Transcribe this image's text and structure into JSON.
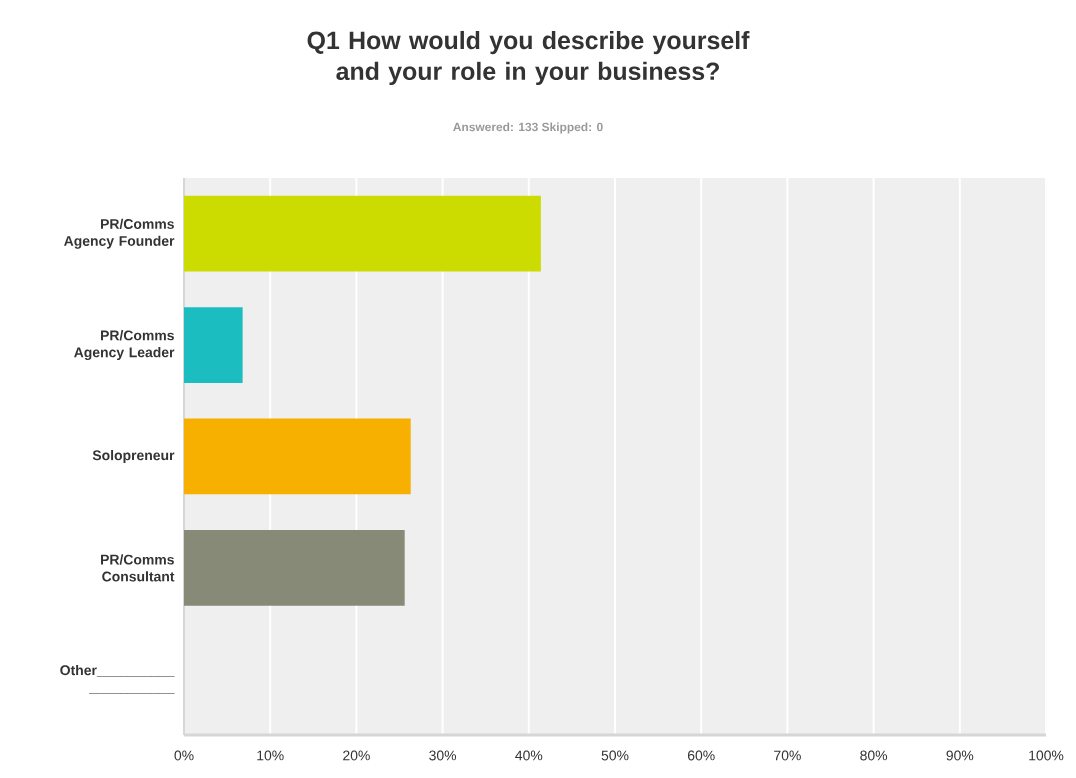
{
  "chart_data": {
    "type": "bar",
    "orientation": "horizontal",
    "title": "Q1 How would you describe yourself and your role in your business?",
    "subtitle": "Answered: 133    Skipped: 0",
    "categories": [
      "PR/Comms Agency Founder",
      "PR/Comms Agency Leader",
      "Solopreneur",
      "PR/Comms Consultant",
      "Other__________ ___________"
    ],
    "values": [
      41.4,
      6.8,
      26.3,
      25.6,
      0
    ],
    "colors": [
      "#cddc00",
      "#1bbdc1",
      "#f7b000",
      "#888a78",
      "#888a78"
    ],
    "xlim": [
      0,
      100
    ],
    "xticks": [
      {
        "value": 0,
        "label": "0%"
      },
      {
        "value": 10,
        "label": "10%"
      },
      {
        "value": 20,
        "label": "20%"
      },
      {
        "value": 30,
        "label": "30%"
      },
      {
        "value": 40,
        "label": "40%"
      },
      {
        "value": 50,
        "label": "50%"
      },
      {
        "value": 60,
        "label": "60%"
      },
      {
        "value": 70,
        "label": "70%"
      },
      {
        "value": 80,
        "label": "80%"
      },
      {
        "value": 90,
        "label": "90%"
      },
      {
        "value": 100,
        "label": "100%"
      }
    ],
    "grid": "x"
  }
}
